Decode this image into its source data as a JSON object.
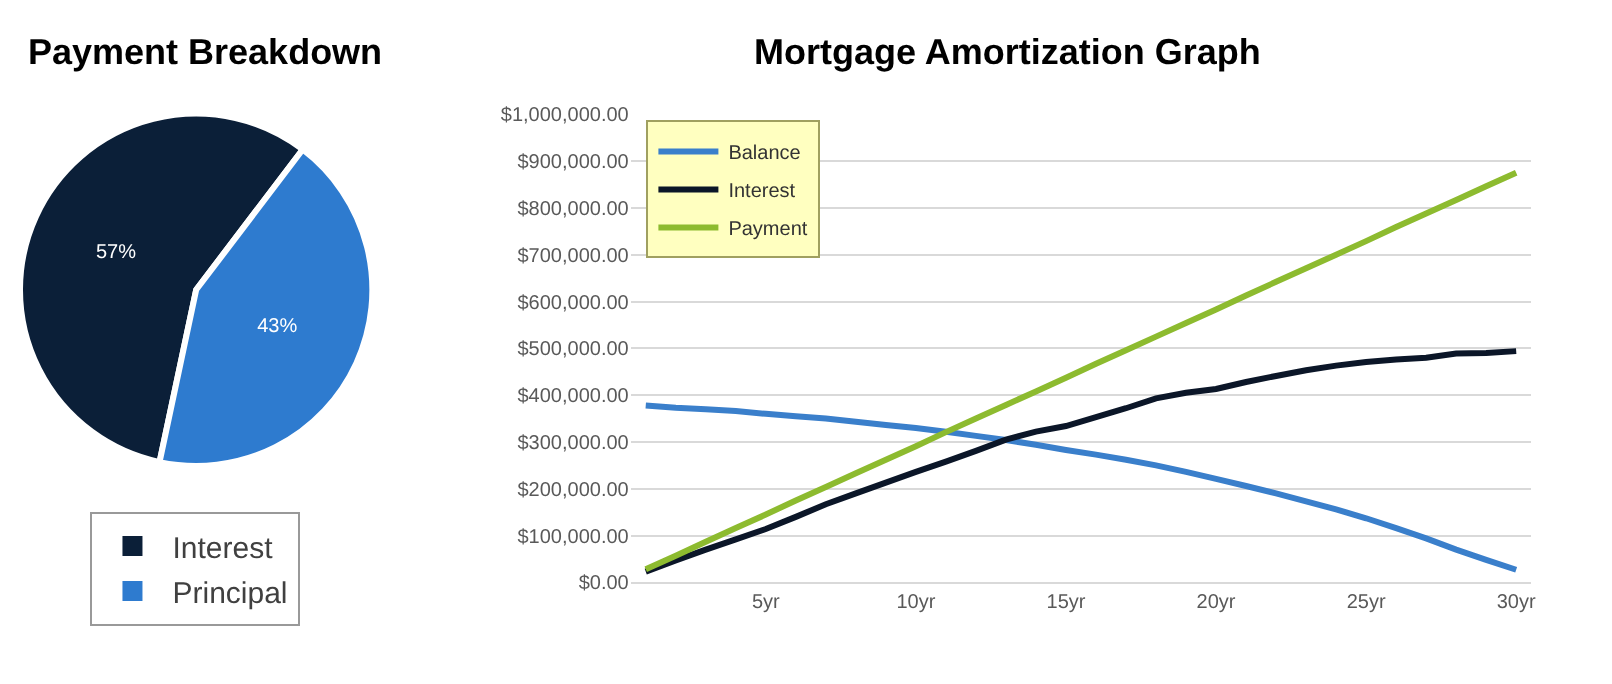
{
  "chart_data": [
    {
      "type": "pie",
      "title": "Payment Breakdown",
      "categories": [
        "Interest",
        "Principal"
      ],
      "values": [
        57,
        43
      ],
      "colors": [
        "#0b1f38",
        "#2e7bcf"
      ],
      "value_labels": [
        "57%",
        "43%"
      ],
      "legend": "bottom"
    },
    {
      "type": "line",
      "title": "Mortgage Amortization Graph",
      "x": [
        1,
        2,
        3,
        4,
        5,
        6,
        7,
        8,
        9,
        10,
        11,
        12,
        13,
        14,
        15,
        16,
        17,
        18,
        19,
        20,
        21,
        22,
        23,
        24,
        25,
        26,
        27,
        28,
        29,
        30
      ],
      "xlim": [
        0.5,
        30.5
      ],
      "xticks": [
        {
          "value": 5,
          "label": "5yr"
        },
        {
          "value": 10,
          "label": "10yr"
        },
        {
          "value": 15,
          "label": "15yr"
        },
        {
          "value": 20,
          "label": "20yr"
        },
        {
          "value": 25,
          "label": "25yr"
        },
        {
          "value": 30,
          "label": "30yr"
        }
      ],
      "ylim": [
        0,
        1000000
      ],
      "yticks": [
        {
          "value": 0,
          "label": "$0.00"
        },
        {
          "value": 100000,
          "label": "$100,000.00"
        },
        {
          "value": 200000,
          "label": "$200,000.00"
        },
        {
          "value": 300000,
          "label": "$300,000.00"
        },
        {
          "value": 400000,
          "label": "$400,000.00"
        },
        {
          "value": 500000,
          "label": "$500,000.00"
        },
        {
          "value": 600000,
          "label": "$600,000.00"
        },
        {
          "value": 700000,
          "label": "$700,000.00"
        },
        {
          "value": 800000,
          "label": "$800,000.00"
        },
        {
          "value": 900000,
          "label": "$900,000.00"
        },
        {
          "value": 1000000,
          "label": "$1,000,000.00"
        }
      ],
      "grid": "y",
      "legend": "top left",
      "marker": "none",
      "line_style": "solid",
      "series": [
        {
          "name": "Balance",
          "color": "#3a7fcb",
          "values": [
            378000,
            373000,
            370000,
            366000,
            360000,
            355000,
            350000,
            343000,
            336000,
            330000,
            322000,
            313000,
            304000,
            294000,
            283000,
            273000,
            262000,
            250000,
            236000,
            221000,
            206000,
            190000,
            173000,
            156000,
            137000,
            116000,
            94000,
            70000,
            48000,
            27000
          ]
        },
        {
          "name": "Interest",
          "color": "#0b1628",
          "values": [
            23000,
            47000,
            70000,
            92000,
            114000,
            140000,
            167000,
            190000,
            213000,
            236000,
            258000,
            281000,
            305000,
            322000,
            334000,
            353000,
            372000,
            393000,
            405000,
            413000,
            428000,
            441000,
            453000,
            463000,
            471000,
            476000,
            480000,
            489000,
            490000,
            494000
          ]
        },
        {
          "name": "Payment",
          "color": "#8dbb2f",
          "values": [
            28000,
            57000,
            87000,
            116000,
            145000,
            175000,
            204000,
            233000,
            262000,
            291000,
            321000,
            350000,
            379000,
            408000,
            437000,
            467000,
            496000,
            525000,
            554000,
            583000,
            613000,
            642000,
            671000,
            700000,
            729000,
            759000,
            788000,
            817000,
            846000,
            875000
          ]
        }
      ]
    }
  ]
}
